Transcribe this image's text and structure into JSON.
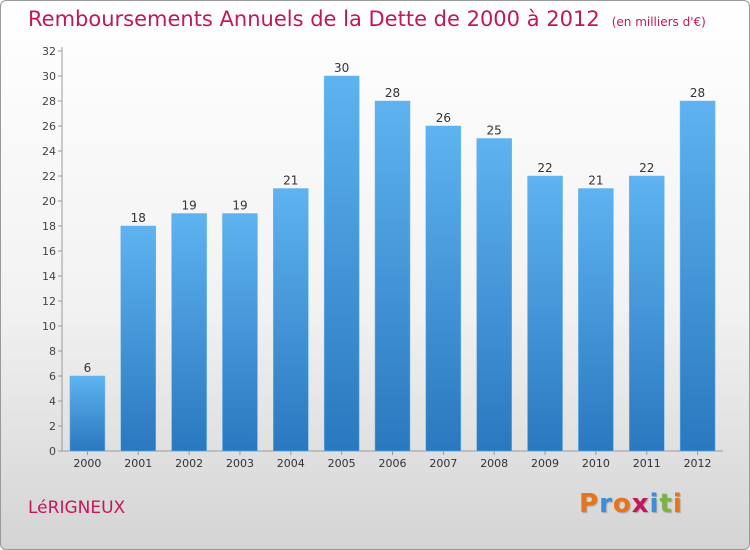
{
  "header": {
    "title": "Remboursements Annuels de la Dette de 2000 à 2012",
    "unit": "(en milliers d'€)"
  },
  "footer": {
    "town": "LéRIGNEUX",
    "logo": "Proxiti",
    "logo_colors": [
      "#e8731a",
      "#3a8fd8",
      "#e8731a",
      "#c2185b",
      "#3a8fd8",
      "#7cb342",
      "#e8731a"
    ]
  },
  "chart_data": {
    "type": "bar",
    "categories": [
      "2000",
      "2001",
      "2002",
      "2003",
      "2004",
      "2005",
      "2006",
      "2007",
      "2008",
      "2009",
      "2010",
      "2011",
      "2012"
    ],
    "values": [
      6,
      18,
      19,
      19,
      21,
      30,
      28,
      26,
      25,
      22,
      21,
      22,
      28
    ],
    "ylim": [
      0,
      32
    ],
    "yticks": [
      0,
      2,
      4,
      6,
      8,
      10,
      12,
      14,
      16,
      18,
      20,
      22,
      24,
      26,
      28,
      30,
      32
    ],
    "grid": false,
    "bar_color": "#4a9de0"
  }
}
